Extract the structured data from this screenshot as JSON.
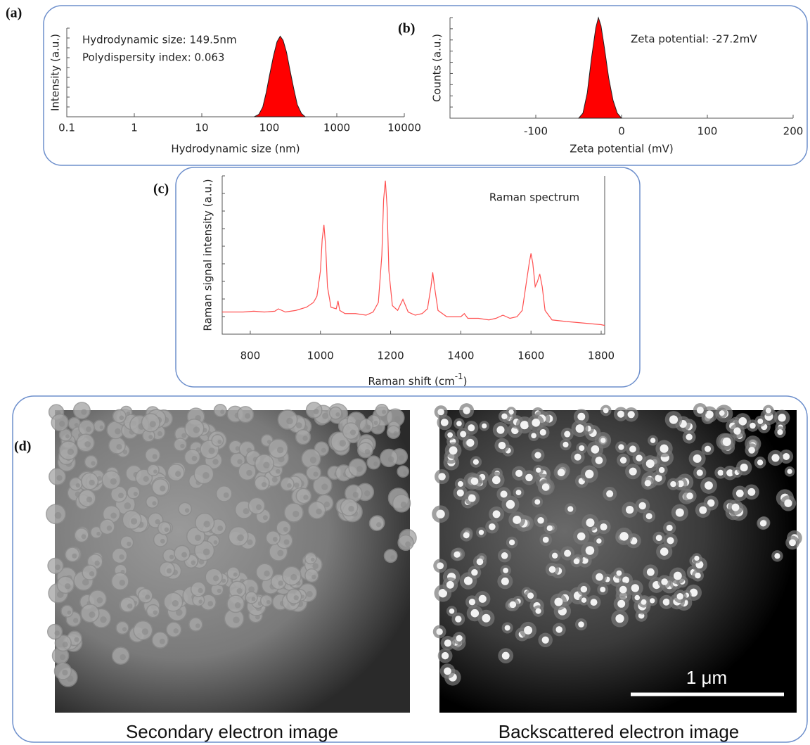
{
  "chart_data": [
    {
      "type": "area",
      "panel": "(a)",
      "xlabel": "Hydrodynamic size (nm)",
      "ylabel": "Intensity (a.u.)",
      "log_x": true,
      "annotations": [
        "Hydrodynamic size: 149.5nm",
        "Polydispersity index: 0.063"
      ],
      "xlim": [
        0.1,
        10000
      ],
      "xticks": [
        0.1,
        1,
        10,
        100,
        1000,
        10000
      ],
      "ylim": [
        0,
        1.1
      ],
      "color": "#ff0000",
      "x": [
        60,
        70,
        80,
        90,
        100,
        115,
        130,
        145,
        160,
        180,
        200,
        230,
        260,
        300,
        340
      ],
      "values": [
        0,
        0.03,
        0.12,
        0.3,
        0.5,
        0.75,
        0.93,
        1.0,
        0.95,
        0.8,
        0.6,
        0.35,
        0.15,
        0.04,
        0
      ]
    },
    {
      "type": "area",
      "panel": "(b)",
      "xlabel": "Zeta potential (mV)",
      "ylabel": "Counts (a.u.)",
      "log_x": false,
      "annotations": [
        "Zeta potential: -27.2mV"
      ],
      "xlim": [
        -200,
        200
      ],
      "xticks": [
        -100,
        0,
        100,
        200
      ],
      "ylim": [
        0,
        1.0
      ],
      "color": "#ff0000",
      "x": [
        -50,
        -45,
        -40,
        -35,
        -30,
        -27,
        -24,
        -20,
        -15,
        -10,
        -5,
        0
      ],
      "values": [
        0,
        0.05,
        0.25,
        0.6,
        0.9,
        1.0,
        0.92,
        0.7,
        0.4,
        0.18,
        0.05,
        0
      ]
    },
    {
      "type": "line",
      "panel": "(c)",
      "xlabel": {
        "text": "Raman shift (cm",
        "superscript": "-1",
        "after": ")"
      },
      "ylabel": "Raman signal intensity (a.u.)",
      "log_x": false,
      "annotations": [
        "Raman spectrum"
      ],
      "xlim": [
        720,
        1810
      ],
      "xticks": [
        800,
        1000,
        1200,
        1400,
        1600,
        1800
      ],
      "ylim": [
        0,
        1.0
      ],
      "color": "#ff5050",
      "x": [
        720,
        750,
        780,
        810,
        840,
        870,
        880,
        900,
        930,
        960,
        980,
        990,
        1000,
        1005,
        1010,
        1015,
        1020,
        1030,
        1045,
        1050,
        1055,
        1070,
        1100,
        1130,
        1150,
        1165,
        1175,
        1180,
        1185,
        1190,
        1195,
        1205,
        1220,
        1235,
        1250,
        1270,
        1290,
        1305,
        1315,
        1320,
        1325,
        1335,
        1360,
        1400,
        1410,
        1420,
        1450,
        1480,
        1500,
        1520,
        1540,
        1560,
        1575,
        1585,
        1595,
        1600,
        1605,
        1612,
        1618,
        1625,
        1632,
        1640,
        1660,
        1700,
        1750,
        1800,
        1810
      ],
      "values": [
        0.14,
        0.14,
        0.14,
        0.145,
        0.14,
        0.145,
        0.16,
        0.14,
        0.15,
        0.17,
        0.2,
        0.24,
        0.4,
        0.6,
        0.69,
        0.55,
        0.3,
        0.17,
        0.16,
        0.21,
        0.15,
        0.13,
        0.13,
        0.12,
        0.14,
        0.2,
        0.5,
        0.85,
        0.97,
        0.8,
        0.4,
        0.18,
        0.15,
        0.22,
        0.14,
        0.12,
        0.13,
        0.16,
        0.3,
        0.39,
        0.3,
        0.15,
        0.11,
        0.11,
        0.13,
        0.1,
        0.1,
        0.09,
        0.1,
        0.12,
        0.1,
        0.11,
        0.15,
        0.3,
        0.45,
        0.51,
        0.45,
        0.3,
        0.33,
        0.38,
        0.3,
        0.15,
        0.09,
        0.08,
        0.07,
        0.06,
        0.055
      ]
    }
  ],
  "images": {
    "panel": "(d)",
    "captions": [
      "Secondary electron image",
      "Backscattered electron image"
    ],
    "scale_bar": "1 μm"
  }
}
